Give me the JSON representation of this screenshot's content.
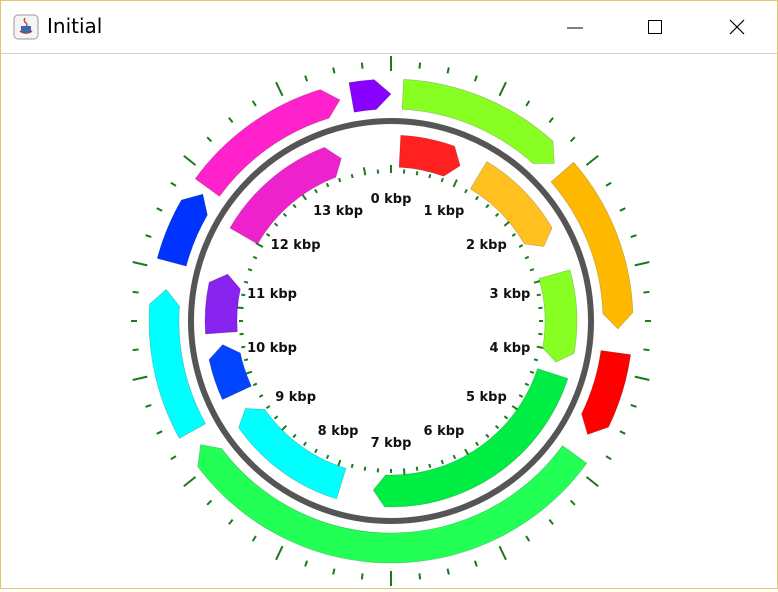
{
  "window": {
    "title": "Initial",
    "controls": [
      "minimize",
      "maximize",
      "close"
    ]
  },
  "plasmid": {
    "labels": [
      "0 kbp",
      "1 kbp",
      "2 kbp",
      "3 kbp",
      "4 kbp",
      "5 kbp",
      "6 kbp",
      "7 kbp",
      "8 kbp",
      "9 kbp",
      "10 kbp",
      "11 kbp",
      "12 kbp",
      "13 kbp"
    ],
    "backbone_color": "#555555",
    "tick_color": "#1a7a1a",
    "inner_features": [
      {
        "name": "inner-red",
        "color": "#ff2020"
      },
      {
        "name": "inner-orange",
        "color": "#ffc020"
      },
      {
        "name": "inner-lime",
        "color": "#88ff22"
      },
      {
        "name": "inner-green",
        "color": "#00ee44"
      },
      {
        "name": "inner-cyan",
        "color": "#00ffff"
      },
      {
        "name": "inner-blue",
        "color": "#0044ff"
      },
      {
        "name": "inner-purple",
        "color": "#8822ee"
      },
      {
        "name": "inner-magenta",
        "color": "#ee22cc"
      }
    ],
    "outer_features": [
      {
        "name": "outer-lime",
        "color": "#88ff22"
      },
      {
        "name": "outer-orange",
        "color": "#ffb800"
      },
      {
        "name": "outer-red",
        "color": "#ff0000"
      },
      {
        "name": "outer-green",
        "color": "#22ff55"
      },
      {
        "name": "outer-cyan",
        "color": "#00ffff"
      },
      {
        "name": "outer-blue",
        "color": "#0033ff"
      },
      {
        "name": "outer-magenta",
        "color": "#ff22cc"
      },
      {
        "name": "outer-purple",
        "color": "#8800ff"
      }
    ]
  }
}
